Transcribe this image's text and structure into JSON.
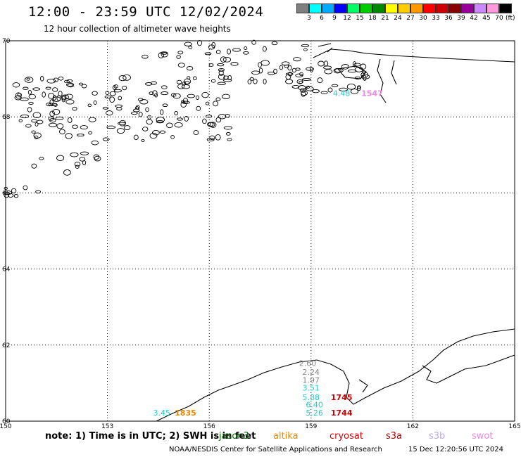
{
  "title": "12:00 - 23:59 UTC 12/02/2024",
  "subtitle": "12 hour collection of altimeter wave heights",
  "legend": {
    "unit": "(ft)",
    "labels": [
      "3",
      "6",
      "9",
      "12",
      "15",
      "18",
      "21",
      "24",
      "27",
      "30",
      "33",
      "36",
      "39",
      "42",
      "45",
      "70"
    ],
    "colors": [
      "#7f7f7f",
      "#00ffff",
      "#00aaff",
      "#0000ff",
      "#00ff66",
      "#00cc00",
      "#008800",
      "#ffff00",
      "#ffcc00",
      "#ff9900",
      "#ff0000",
      "#cc0000",
      "#880000",
      "#990099",
      "#cc88ff",
      "#ff99dd",
      "#000000"
    ]
  },
  "map": {
    "lon_ticks": [
      "150",
      "153",
      "156",
      "159",
      "162",
      "165"
    ],
    "lat_ticks": [
      "70",
      "68",
      "66",
      "64",
      "62",
      "60"
    ],
    "lon_range": [
      150,
      165
    ],
    "lat_range": [
      60,
      70
    ]
  },
  "observations": [
    {
      "value": "4.48",
      "color": "#22cccc",
      "lon": 159.9,
      "lat": 68.55
    },
    {
      "value": "1547",
      "color": "#ee88dd",
      "lon": 160.8,
      "lat": 68.55
    },
    {
      "value": "2.60",
      "color": "#888888",
      "lon": 158.9,
      "lat": 61.45
    },
    {
      "value": "2.24",
      "color": "#888888",
      "lon": 159.0,
      "lat": 61.22
    },
    {
      "value": "1.97",
      "color": "#888888",
      "lon": 159.0,
      "lat": 61.01
    },
    {
      "value": "3.51",
      "color": "#22cccc",
      "lon": 159.0,
      "lat": 60.8
    },
    {
      "value": "5.88",
      "color": "#22cccc",
      "lon": 159.0,
      "lat": 60.55
    },
    {
      "value": "1745",
      "color": "#cc0000",
      "lon": 159.9,
      "lat": 60.55
    },
    {
      "value": "6.40",
      "color": "#22cccc",
      "lon": 159.1,
      "lat": 60.36
    },
    {
      "value": "5.26",
      "color": "#22cccc",
      "lon": 159.1,
      "lat": 60.15
    },
    {
      "value": "1744",
      "color": "#cc0000",
      "lon": 159.9,
      "lat": 60.15
    },
    {
      "value": "3.45",
      "color": "#22cccc",
      "lon": 154.6,
      "lat": 60.15
    },
    {
      "value": "1835",
      "color": "#ee8800",
      "lon": 155.3,
      "lat": 60.15
    }
  ],
  "note": "note: 1) Time is in UTC; 2) SWH is in feet",
  "satellites": [
    {
      "name": "jason3",
      "color": "#006600",
      "left": 311
    },
    {
      "name": "altika",
      "color": "#ee8800",
      "left": 388
    },
    {
      "name": "cryosat",
      "color": "#dd0000",
      "left": 468
    },
    {
      "name": "s3a",
      "color": "#aa0000",
      "left": 548
    },
    {
      "name": "s3b",
      "color": "#bbaaee",
      "left": 609
    },
    {
      "name": "swot",
      "color": "#ee88dd",
      "left": 670
    }
  ],
  "footer": "NOAA/NESDIS Center for Satellite Applications and Research",
  "timestamp": "15 Dec 12:20:56 UTC 2024"
}
